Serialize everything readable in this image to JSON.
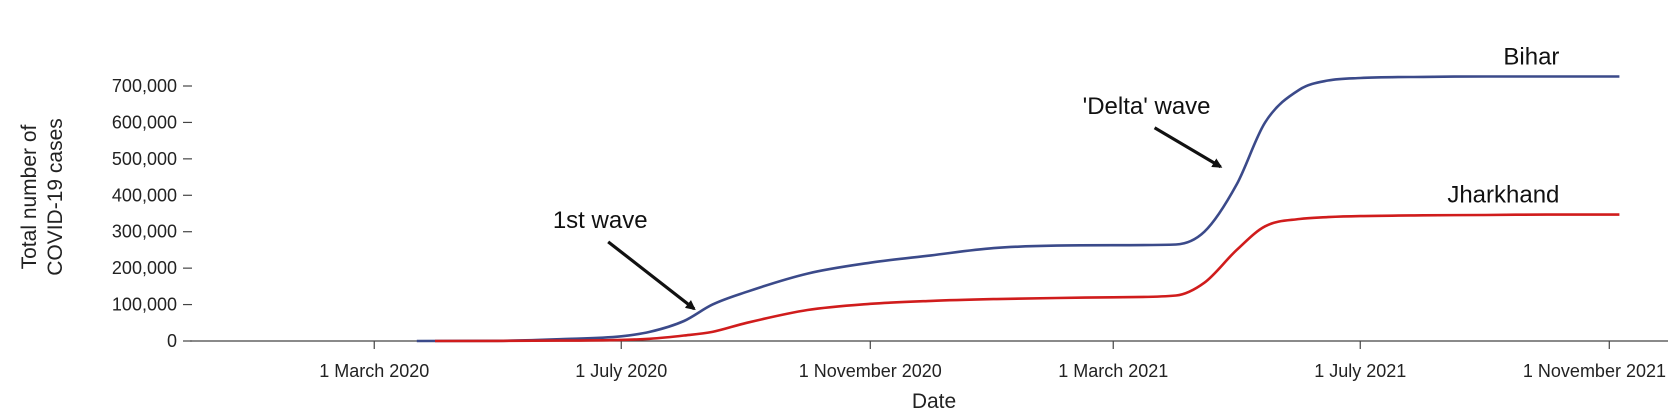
{
  "chart_data": {
    "type": "line",
    "xlabel": "Date",
    "ylabel_lines": [
      "Total number of",
      "COVID-19 cases"
    ],
    "x_range": [
      "2019-12-01",
      "2021-11-30"
    ],
    "ylim": [
      0,
      700000
    ],
    "y_ticks": [
      0,
      100000,
      200000,
      300000,
      400000,
      500000,
      600000,
      700000
    ],
    "y_tick_labels": [
      "0",
      "100,000",
      "200,000",
      "300,000",
      "400,000",
      "500,000",
      "600,000",
      "700,000"
    ],
    "x_ticks": [
      "2020-03-01",
      "2020-07-01",
      "2020-11-01",
      "2021-03-01",
      "2021-07-01",
      "2021-11-01"
    ],
    "x_tick_labels": [
      "1 March 2020",
      "1 July 2020",
      "1 November 2020",
      "1 March 2021",
      "1 July 2021",
      "1 November 2021"
    ],
    "grid": false,
    "series": [
      {
        "name": "Bihar",
        "color": "#3b4a8a",
        "points": [
          [
            "2020-03-22",
            0
          ],
          [
            "2020-05-01",
            500
          ],
          [
            "2020-06-01",
            5000
          ],
          [
            "2020-07-01",
            13000
          ],
          [
            "2020-07-15",
            25000
          ],
          [
            "2020-08-01",
            55000
          ],
          [
            "2020-08-15",
            100000
          ],
          [
            "2020-09-01",
            135000
          ],
          [
            "2020-10-01",
            185000
          ],
          [
            "2020-11-01",
            215000
          ],
          [
            "2020-12-01",
            235000
          ],
          [
            "2021-01-01",
            255000
          ],
          [
            "2021-02-01",
            262000
          ],
          [
            "2021-03-01",
            263000
          ],
          [
            "2021-04-01",
            265000
          ],
          [
            "2021-04-15",
            300000
          ],
          [
            "2021-05-01",
            430000
          ],
          [
            "2021-05-15",
            600000
          ],
          [
            "2021-06-01",
            690000
          ],
          [
            "2021-06-15",
            715000
          ],
          [
            "2021-07-01",
            722000
          ],
          [
            "2021-08-01",
            725000
          ],
          [
            "2021-09-01",
            726000
          ],
          [
            "2021-10-01",
            726000
          ],
          [
            "2021-11-06",
            726000
          ]
        ]
      },
      {
        "name": "Jharkhand",
        "color": "#d01c1c",
        "points": [
          [
            "2020-03-31",
            0
          ],
          [
            "2020-05-01",
            200
          ],
          [
            "2020-06-01",
            1000
          ],
          [
            "2020-07-01",
            3000
          ],
          [
            "2020-07-15",
            6000
          ],
          [
            "2020-08-01",
            15000
          ],
          [
            "2020-08-15",
            25000
          ],
          [
            "2020-09-01",
            50000
          ],
          [
            "2020-10-01",
            85000
          ],
          [
            "2020-11-01",
            102000
          ],
          [
            "2020-12-01",
            110000
          ],
          [
            "2021-01-01",
            115000
          ],
          [
            "2021-02-01",
            118000
          ],
          [
            "2021-03-01",
            120000
          ],
          [
            "2021-04-01",
            125000
          ],
          [
            "2021-04-15",
            160000
          ],
          [
            "2021-05-01",
            250000
          ],
          [
            "2021-05-15",
            315000
          ],
          [
            "2021-06-01",
            335000
          ],
          [
            "2021-06-15",
            340000
          ],
          [
            "2021-07-01",
            343000
          ],
          [
            "2021-08-01",
            345000
          ],
          [
            "2021-09-01",
            346000
          ],
          [
            "2021-10-01",
            347000
          ],
          [
            "2021-11-06",
            347000
          ]
        ]
      }
    ],
    "annotations": [
      {
        "text": "1st wave",
        "points_to": [
          "2020-08-08",
          80000
        ]
      },
      {
        "text": "'Delta' wave",
        "points_to": [
          "2021-04-25",
          470000
        ]
      }
    ]
  }
}
